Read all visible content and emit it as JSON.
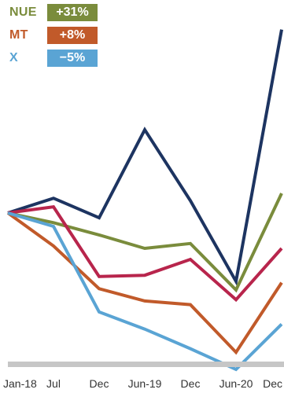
{
  "chart_data": {
    "type": "line",
    "x": [
      "Jan-18",
      "Jul",
      "Dec",
      "Jun-19",
      "Dec",
      "Jun-20",
      "Dec"
    ],
    "ylim": [
      -55,
      80
    ],
    "grid": false,
    "legend_placement": "top-left",
    "series": [
      {
        "name": "",
        "color": "#1d3461",
        "values": [
          0,
          6,
          -2,
          34,
          5,
          -28,
          75
        ]
      },
      {
        "name": "NUE",
        "color": "#7a8c3c",
        "values": [
          0,
          -4,
          -9,
          -14.5,
          -12.5,
          -31.5,
          8
        ],
        "change": "+31%"
      },
      {
        "name": "MT",
        "color": "#c15a2a",
        "values": [
          0,
          -13.5,
          -31,
          -36,
          -37.5,
          -57,
          -28.5
        ],
        "change": "+8%"
      },
      {
        "name": "",
        "color": "#b8254c",
        "values": [
          0,
          2.5,
          -26,
          -25.5,
          -19,
          -35.5,
          -14.5
        ]
      },
      {
        "name": "X",
        "color": "#5aa4d4",
        "values": [
          0,
          -5.5,
          -40.5,
          -47.5,
          -55.5,
          -64,
          -45.5
        ],
        "change": "−5%"
      }
    ]
  }
}
